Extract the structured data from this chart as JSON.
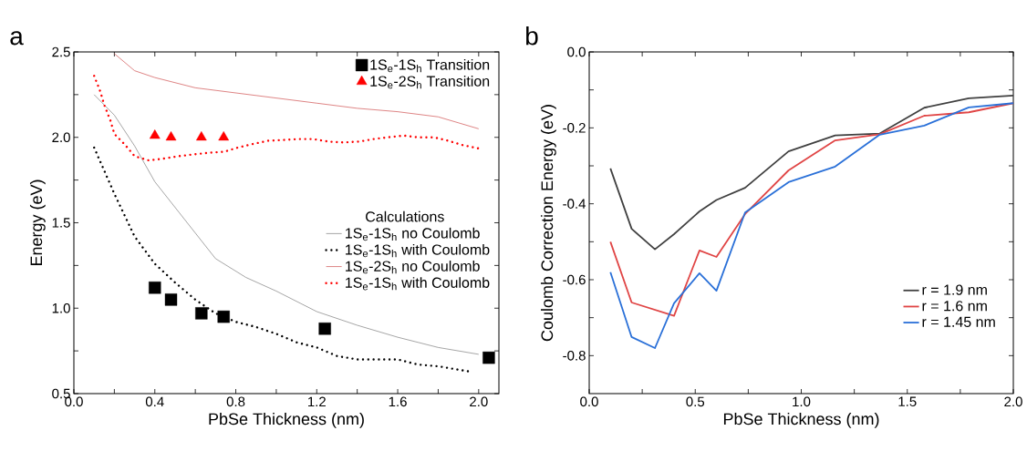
{
  "chart_data": [
    {
      "type": "line",
      "title": "a",
      "xlabel": "PbSe Thickness (nm)",
      "ylabel": "Energy (eV)",
      "legend_title": "Calculations",
      "legend": "right",
      "xlim": [
        0,
        2.1
      ],
      "ylim": [
        0.5,
        2.5
      ],
      "xticks": [
        {
          "value": 0,
          "label": "0.0"
        },
        {
          "value": 0.2,
          "label": null
        },
        {
          "value": 0.4,
          "label": "0.4"
        },
        {
          "value": 0.6,
          "label": null
        },
        {
          "value": 0.8,
          "label": "0.8"
        },
        {
          "value": 1.0,
          "label": null
        },
        {
          "value": 1.2,
          "label": "1.2"
        },
        {
          "value": 1.4,
          "label": null
        },
        {
          "value": 1.6,
          "label": "1.6"
        },
        {
          "value": 1.8,
          "label": null
        },
        {
          "value": 2.0,
          "label": "2.0"
        }
      ],
      "yticks": [
        {
          "value": 0.5,
          "label": "0.5"
        },
        {
          "value": 0.75,
          "label": null
        },
        {
          "value": 1.0,
          "label": "1.0"
        },
        {
          "value": 1.25,
          "label": null
        },
        {
          "value": 1.5,
          "label": "1.5"
        },
        {
          "value": 1.75,
          "label": null
        },
        {
          "value": 2.0,
          "label": "2.0"
        },
        {
          "value": 2.25,
          "label": null
        },
        {
          "value": 2.5,
          "label": "2.5"
        }
      ],
      "series": [
        {
          "name": "1S$_{e}$-1S$_{h}$ Transition",
          "type": "scatter",
          "marker": "square",
          "color": "#000000",
          "x": [
            0.4,
            0.48,
            0.63,
            0.74,
            1.24,
            2.05
          ],
          "values": [
            1.12,
            1.05,
            0.97,
            0.95,
            0.88,
            0.71
          ]
        },
        {
          "name": "1S$_{e}$-2S$_{h}$ Transition",
          "type": "scatter",
          "marker": "triangle",
          "color": "#ff0000",
          "x": [
            0.4,
            0.48,
            0.63,
            0.74
          ],
          "values": [
            2.01,
            2.0,
            2.0,
            2.0
          ]
        },
        {
          "name": "1S$_{e}$-1S$_{h}$ no Coulomb",
          "type": "line",
          "line_style": "solid",
          "color": "#808080",
          "x": [
            0.1,
            0.2,
            0.3,
            0.4,
            0.52,
            0.7,
            0.85,
            1.0,
            1.2,
            1.4,
            1.6,
            1.8,
            2.0
          ],
          "values": [
            2.25,
            2.13,
            1.95,
            1.74,
            1.56,
            1.29,
            1.18,
            1.1,
            0.98,
            0.9,
            0.83,
            0.77,
            0.73
          ]
        },
        {
          "name": "1S$_{e}$-1S$_{h}$ with Coulomb",
          "type": "line",
          "line_style": "dotted",
          "color": "#000000",
          "x": [
            0.1,
            0.2,
            0.3,
            0.4,
            0.5,
            0.6,
            0.7,
            0.8,
            0.9,
            1.0,
            1.1,
            1.2,
            1.3,
            1.4,
            1.6,
            1.7,
            1.8,
            1.95
          ],
          "values": [
            1.94,
            1.67,
            1.42,
            1.26,
            1.15,
            1.05,
            0.97,
            0.92,
            0.89,
            0.85,
            0.8,
            0.77,
            0.72,
            0.7,
            0.7,
            0.67,
            0.66,
            0.63
          ]
        },
        {
          "name": "1S$_{e}$-2S$_{h}$ no Coulomb",
          "type": "line",
          "line_style": "solid",
          "color": "#d05050",
          "x": [
            0.2,
            0.3,
            0.4,
            0.6,
            0.8,
            1.0,
            1.2,
            1.4,
            1.6,
            1.8,
            2.0
          ],
          "values": [
            2.49,
            2.39,
            2.35,
            2.29,
            2.26,
            2.23,
            2.2,
            2.17,
            2.15,
            2.12,
            2.05
          ]
        },
        {
          "name": "1S$_{e}$-1S$_{h}$ with Coulomb",
          "type": "line",
          "line_style": "dotted",
          "color": "#ff0000",
          "x": [
            0.1,
            0.13,
            0.15,
            0.18,
            0.2,
            0.25,
            0.3,
            0.37,
            0.44,
            0.52,
            0.59,
            0.67,
            0.74,
            0.81,
            0.88,
            0.96,
            1.04,
            1.11,
            1.18,
            1.26,
            1.33,
            1.41,
            1.48,
            1.55,
            1.63,
            1.7,
            1.78,
            1.85,
            1.92,
            2.0
          ],
          "values": [
            2.36,
            2.27,
            2.19,
            2.1,
            2.02,
            1.96,
            1.89,
            1.865,
            1.875,
            1.89,
            1.9,
            1.91,
            1.915,
            1.94,
            1.96,
            1.98,
            1.985,
            1.99,
            1.99,
            1.975,
            1.97,
            1.975,
            1.99,
            2.0,
            2.01,
            2.0,
            2.0,
            1.98,
            1.955,
            1.935
          ]
        }
      ]
    },
    {
      "type": "line",
      "title": "b",
      "xlabel": "PbSe Thickness (nm)",
      "ylabel": "Coulomb Correction Energy (eV)",
      "legend": "bottom right",
      "xlim": [
        0,
        2.0
      ],
      "ylim": [
        -0.9,
        0
      ],
      "xticks": [
        {
          "value": 0,
          "label": "0.0"
        },
        {
          "value": 0.25,
          "label": null
        },
        {
          "value": 0.5,
          "label": "0.5"
        },
        {
          "value": 0.75,
          "label": null
        },
        {
          "value": 1.0,
          "label": "1.0"
        },
        {
          "value": 1.25,
          "label": null
        },
        {
          "value": 1.5,
          "label": "1.5"
        },
        {
          "value": 1.75,
          "label": null
        },
        {
          "value": 2.0,
          "label": "2.0"
        }
      ],
      "yticks": [
        {
          "value": -0.8,
          "label": "-0.8"
        },
        {
          "value": -0.7,
          "label": null
        },
        {
          "value": -0.6,
          "label": "-0.6"
        },
        {
          "value": -0.5,
          "label": null
        },
        {
          "value": -0.4,
          "label": "-0.4"
        },
        {
          "value": -0.3,
          "label": null
        },
        {
          "value": -0.2,
          "label": "-0.2"
        },
        {
          "value": -0.1,
          "label": null
        },
        {
          "value": 0,
          "label": "0.0"
        }
      ],
      "series": [
        {
          "name": "r = 1.9 nm",
          "color": "#404040",
          "x": [
            0.1,
            0.2,
            0.31,
            0.4,
            0.52,
            0.6,
            0.735,
            0.94,
            1.16,
            1.37,
            1.58,
            1.79,
            2.0
          ],
          "values": [
            -0.307,
            -0.466,
            -0.52,
            -0.48,
            -0.42,
            -0.39,
            -0.358,
            -0.262,
            -0.22,
            -0.215,
            -0.147,
            -0.122,
            -0.115
          ]
        },
        {
          "name": "r = 1.6 nm",
          "color": "#e04545",
          "x": [
            0.1,
            0.2,
            0.4,
            0.52,
            0.6,
            0.735,
            0.94,
            1.16,
            1.37,
            1.58,
            1.79,
            2.0
          ],
          "values": [
            -0.5,
            -0.66,
            -0.695,
            -0.523,
            -0.54,
            -0.427,
            -0.312,
            -0.233,
            -0.217,
            -0.168,
            -0.159,
            -0.135
          ]
        },
        {
          "name": "r = 1.45 nm",
          "color": "#2a70d8",
          "x": [
            0.1,
            0.2,
            0.31,
            0.4,
            0.52,
            0.6,
            0.735,
            0.94,
            1.16,
            1.37,
            1.58,
            1.79,
            2.0
          ],
          "values": [
            -0.58,
            -0.751,
            -0.78,
            -0.662,
            -0.583,
            -0.629,
            -0.423,
            -0.343,
            -0.302,
            -0.218,
            -0.194,
            -0.146,
            -0.135
          ]
        }
      ]
    }
  ]
}
